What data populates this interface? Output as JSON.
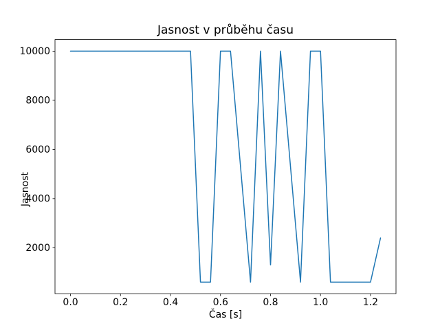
{
  "window": {
    "background": "#ffffff",
    "text_color": "#000000"
  },
  "chart_data": {
    "type": "line",
    "title": "Jasnost v průběhu času",
    "xlabel": "Čas [s]",
    "ylabel": "Jasnost",
    "line_color": "#1f77b4",
    "grid": false,
    "legend": "none",
    "xlim": [
      -0.062,
      1.302
    ],
    "ylim": [
      130,
      10470
    ],
    "x_ticks": {
      "values": [
        0.0,
        0.2,
        0.4,
        0.6,
        0.8,
        1.0,
        1.2
      ],
      "labels": [
        "0.0",
        "0.2",
        "0.4",
        "0.6",
        "0.8",
        "1.0",
        "1.2"
      ]
    },
    "y_ticks": {
      "values": [
        2000,
        4000,
        6000,
        8000,
        10000
      ],
      "labels": [
        "2000",
        "4000",
        "6000",
        "8000",
        "10000"
      ]
    },
    "series": [
      {
        "name": "jasnost",
        "points": [
          [
            0.0,
            10000
          ],
          [
            0.48,
            10000
          ],
          [
            0.52,
            600
          ],
          [
            0.56,
            600
          ],
          [
            0.6,
            10000
          ],
          [
            0.64,
            10000
          ],
          [
            0.72,
            600
          ],
          [
            0.76,
            10000
          ],
          [
            0.8,
            1300
          ],
          [
            0.84,
            10000
          ],
          [
            0.92,
            600
          ],
          [
            0.96,
            10000
          ],
          [
            1.0,
            10000
          ],
          [
            1.04,
            600
          ],
          [
            1.2,
            600
          ],
          [
            1.24,
            2400
          ]
        ]
      }
    ]
  }
}
